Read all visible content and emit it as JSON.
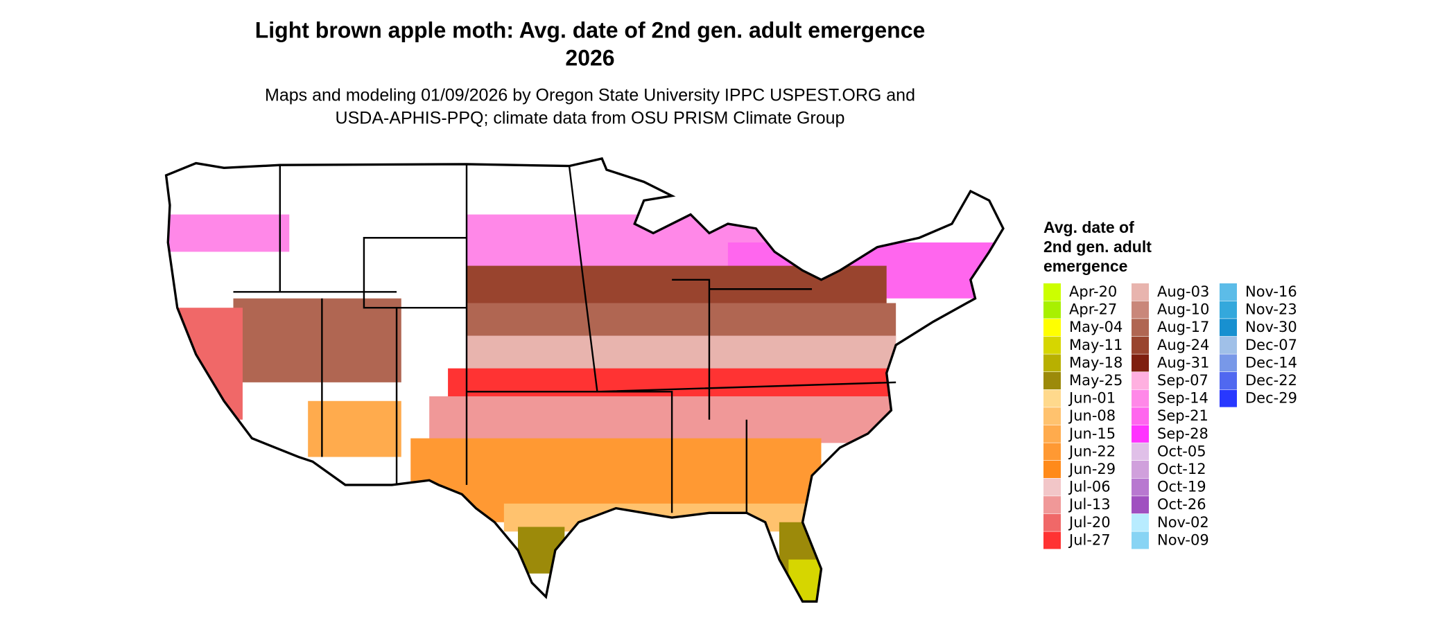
{
  "title_lines": [
    "Light brown apple moth: Avg. date of 2nd gen. adult emergence",
    "2026"
  ],
  "subtitle_lines": [
    "Maps and modeling 01/09/2026 by Oregon State University IPPC USPEST.ORG and",
    "USDA-APHIS-PPQ; climate data from OSU PRISM Climate Group"
  ],
  "legend": {
    "title_lines": [
      "Avg. date of",
      "2nd gen. adult",
      "emergence"
    ],
    "items": [
      {
        "label": "Apr-20",
        "color": "#ccff00"
      },
      {
        "label": "Apr-27",
        "color": "#a8f000"
      },
      {
        "label": "May-04",
        "color": "#ffff00"
      },
      {
        "label": "May-11",
        "color": "#d6d600"
      },
      {
        "label": "May-18",
        "color": "#b8b000"
      },
      {
        "label": "May-25",
        "color": "#9c8a0a"
      },
      {
        "label": "Jun-01",
        "color": "#ffd98c"
      },
      {
        "label": "Jun-08",
        "color": "#ffc26e"
      },
      {
        "label": "Jun-15",
        "color": "#ffab4d"
      },
      {
        "label": "Jun-22",
        "color": "#ff9933"
      },
      {
        "label": "Jun-29",
        "color": "#ff8a1a"
      },
      {
        "label": "Jul-06",
        "color": "#f2c6c8"
      },
      {
        "label": "Jul-13",
        "color": "#f09898"
      },
      {
        "label": "Jul-20",
        "color": "#f06868"
      },
      {
        "label": "Jul-27",
        "color": "#ff3333"
      },
      {
        "label": "Aug-03",
        "color": "#e8b4ae"
      },
      {
        "label": "Aug-10",
        "color": "#c9877a"
      },
      {
        "label": "Aug-17",
        "color": "#b06652"
      },
      {
        "label": "Aug-24",
        "color": "#99442e"
      },
      {
        "label": "Aug-31",
        "color": "#7f1f0f"
      },
      {
        "label": "Sep-07",
        "color": "#ffb0e0"
      },
      {
        "label": "Sep-14",
        "color": "#ff88e8"
      },
      {
        "label": "Sep-21",
        "color": "#ff66ee"
      },
      {
        "label": "Sep-28",
        "color": "#ff33ff"
      },
      {
        "label": "Oct-05",
        "color": "#e0c0e8"
      },
      {
        "label": "Oct-12",
        "color": "#d0a0dc"
      },
      {
        "label": "Oct-19",
        "color": "#b878d0"
      },
      {
        "label": "Oct-26",
        "color": "#a050c0"
      },
      {
        "label": "Nov-02",
        "color": "#b8ecff"
      },
      {
        "label": "Nov-09",
        "color": "#88d4f4"
      },
      {
        "label": "Nov-16",
        "color": "#5cbce8"
      },
      {
        "label": "Nov-23",
        "color": "#34a8dc"
      },
      {
        "label": "Nov-30",
        "color": "#1890d0"
      },
      {
        "label": "Dec-07",
        "color": "#a0c0e8"
      },
      {
        "label": "Dec-14",
        "color": "#7898e8"
      },
      {
        "label": "Dec-22",
        "color": "#5068f0"
      },
      {
        "label": "Dec-29",
        "color": "#2838ff"
      }
    ]
  }
}
